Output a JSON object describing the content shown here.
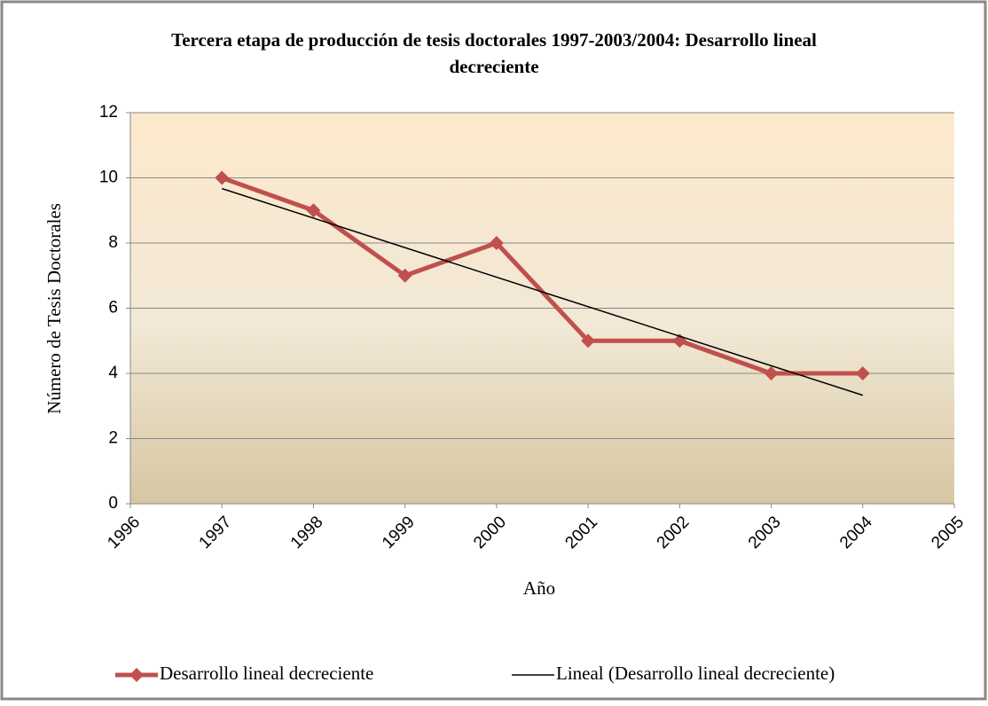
{
  "chart_data": {
    "type": "line",
    "title": "Tercera etapa de producción de tesis doctorales 1997-2003/2004: Desarrollo lineal decreciente",
    "x_label": "Año",
    "y_label": "Número de Tesis Doctorales",
    "xlim": [
      1996,
      2005
    ],
    "xticks": [
      1996,
      1997,
      1998,
      1999,
      2000,
      2001,
      2002,
      2003,
      2004,
      2005
    ],
    "ylim": [
      0,
      12
    ],
    "yticks": [
      0,
      2,
      4,
      6,
      8,
      10,
      12
    ],
    "grid": true,
    "legend": "bottom",
    "series": [
      {
        "name": "Desarrollo lineal decreciente",
        "color": "#c0504d",
        "marker": "diamond",
        "x": [
          1997,
          1998,
          1999,
          2000,
          2001,
          2002,
          2003,
          2004
        ],
        "values": [
          10,
          9,
          7,
          8,
          5,
          5,
          4,
          4
        ]
      },
      {
        "name": "Lineal (Desarrollo lineal decreciente)",
        "color": "#000000",
        "marker": "none",
        "x": [
          1997,
          2004
        ],
        "values": [
          9.67,
          3.33
        ]
      }
    ]
  }
}
